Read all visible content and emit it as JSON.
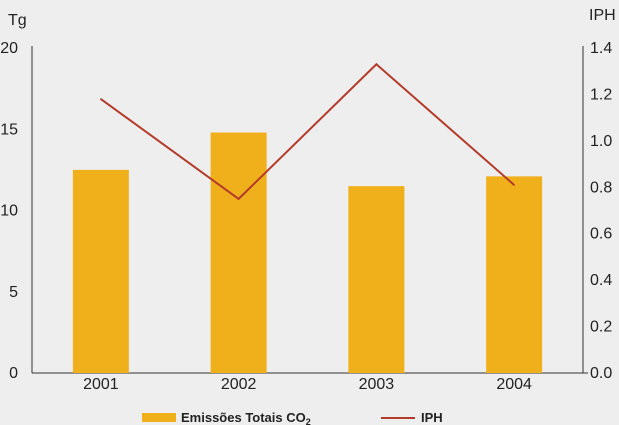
{
  "chart_data": {
    "type": "bar",
    "categories": [
      "2001",
      "2002",
      "2003",
      "2004"
    ],
    "series": [
      {
        "name": "Emissões Totais CO2",
        "legend_label": "Emissões Totais  CO",
        "legend_subscript": "2",
        "type": "bar",
        "axis": "left",
        "color": "#f0b01c",
        "values": [
          12.5,
          14.8,
          11.5,
          12.1
        ]
      },
      {
        "name": "IPH",
        "legend_label": "IPH",
        "type": "line",
        "axis": "right",
        "color": "#b33b2a",
        "values": [
          1.18,
          0.75,
          1.33,
          0.81
        ]
      }
    ],
    "y_left": {
      "unit_label": "Tg",
      "ylim": [
        0,
        20
      ],
      "ticks": [
        "0",
        "5",
        "10",
        "15",
        "20"
      ],
      "tick_values": [
        0,
        5,
        10,
        15,
        20
      ]
    },
    "y_right": {
      "unit_label": "IPH",
      "ylim": [
        0,
        1.4
      ],
      "ticks": [
        "0.0",
        "0.2",
        "0.4",
        "0.6",
        "0.8",
        "1.0",
        "1.2",
        "1.4"
      ],
      "tick_values": [
        0,
        0.2,
        0.4,
        0.6,
        0.8,
        1.0,
        1.2,
        1.4
      ]
    },
    "grid": false,
    "legend_position": "bottom"
  }
}
